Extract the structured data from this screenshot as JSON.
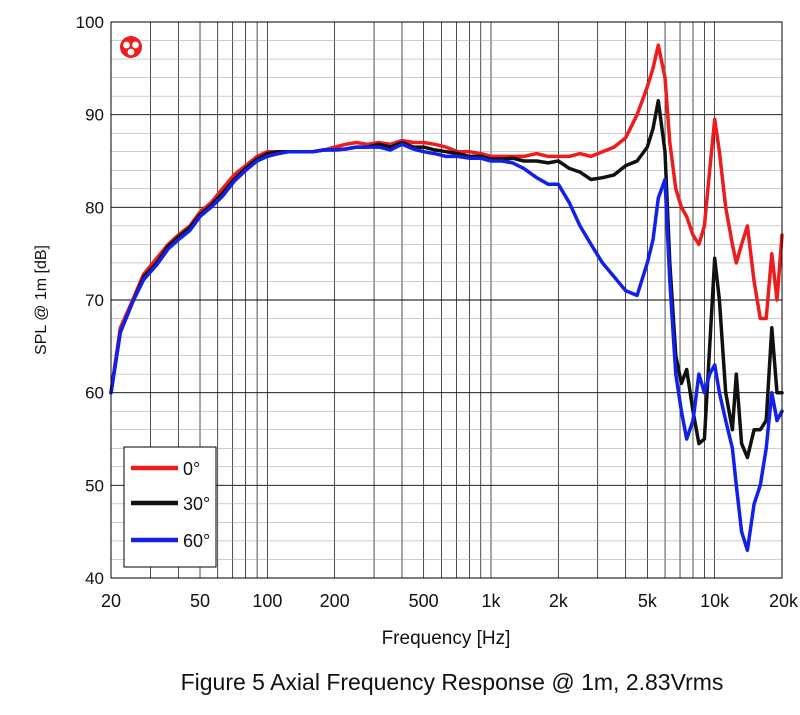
{
  "chart_data": {
    "type": "line",
    "title": "",
    "caption": "Figure 5 Axial Frequency Response @ 1m, 2.83Vrms",
    "xlabel": "Frequency [Hz]",
    "ylabel": "SPL @ 1m [dB]",
    "xscale": "log",
    "xlim": [
      20,
      20000
    ],
    "ylim": [
      40,
      100
    ],
    "grid": true,
    "legend_position": "bottom-left",
    "x_ticks": [
      {
        "value": 20,
        "label": "20"
      },
      {
        "value": 50,
        "label": "50"
      },
      {
        "value": 100,
        "label": "100"
      },
      {
        "value": 200,
        "label": "200"
      },
      {
        "value": 500,
        "label": "500"
      },
      {
        "value": 1000,
        "label": "1k"
      },
      {
        "value": 2000,
        "label": "2k"
      },
      {
        "value": 5000,
        "label": "5k"
      },
      {
        "value": 10000,
        "label": "10k"
      },
      {
        "value": 20000,
        "label": "20k"
      }
    ],
    "y_ticks": [
      40,
      50,
      60,
      70,
      80,
      90,
      100
    ],
    "series": [
      {
        "name": "0°",
        "color": "#ee1c1c",
        "x": [
          20,
          22,
          25,
          28,
          32,
          36,
          40,
          45,
          50,
          56,
          63,
          71,
          80,
          90,
          100,
          112,
          125,
          140,
          160,
          180,
          200,
          224,
          250,
          280,
          315,
          355,
          400,
          450,
          500,
          560,
          630,
          710,
          800,
          900,
          1000,
          1120,
          1250,
          1400,
          1600,
          1800,
          2000,
          2240,
          2500,
          2800,
          3150,
          3550,
          4000,
          4500,
          5000,
          5300,
          5600,
          6000,
          6300,
          6700,
          7100,
          7500,
          8000,
          8500,
          9000,
          9500,
          10000,
          10500,
          11200,
          12000,
          12500,
          13200,
          14000,
          15000,
          16000,
          17000,
          18000,
          19000,
          20000
        ],
        "values": [
          60,
          67,
          70,
          72.8,
          74.5,
          76,
          77,
          78,
          79.5,
          80.5,
          82,
          83.5,
          84.5,
          85.5,
          86,
          86,
          86,
          86,
          86,
          86.2,
          86.5,
          86.8,
          87,
          86.8,
          87,
          86.8,
          87.2,
          87,
          87,
          86.8,
          86.5,
          86,
          86,
          85.8,
          85.5,
          85.5,
          85.5,
          85.5,
          85.8,
          85.5,
          85.5,
          85.5,
          85.8,
          85.5,
          86,
          86.5,
          87.5,
          90,
          93,
          95,
          97.5,
          94,
          87,
          82,
          80,
          79,
          77,
          76,
          78,
          84,
          89.5,
          86,
          80,
          76,
          74,
          76,
          78,
          72,
          68,
          68,
          75,
          70,
          77
        ]
      },
      {
        "name": "30°",
        "color": "#111111",
        "x": [
          20,
          22,
          25,
          28,
          32,
          36,
          40,
          45,
          50,
          56,
          63,
          71,
          80,
          90,
          100,
          112,
          125,
          140,
          160,
          180,
          200,
          224,
          250,
          280,
          315,
          355,
          400,
          450,
          500,
          560,
          630,
          710,
          800,
          900,
          1000,
          1120,
          1250,
          1400,
          1600,
          1800,
          2000,
          2240,
          2500,
          2800,
          3150,
          3550,
          4000,
          4500,
          5000,
          5300,
          5600,
          6000,
          6300,
          6700,
          7100,
          7500,
          8000,
          8500,
          9000,
          9500,
          10000,
          10500,
          11200,
          12000,
          12500,
          13200,
          14000,
          15000,
          16000,
          17000,
          18000,
          19000,
          20000
        ],
        "values": [
          60,
          66.5,
          69.8,
          72.5,
          74,
          75.8,
          76.8,
          77.8,
          79.2,
          80.2,
          81.5,
          83,
          84.2,
          85.2,
          85.8,
          86,
          86,
          86,
          86,
          86.2,
          86.2,
          86.3,
          86.5,
          86.5,
          86.8,
          86.5,
          87,
          86.5,
          86.5,
          86.2,
          86,
          85.8,
          85.5,
          85.5,
          85.2,
          85.2,
          85.3,
          85,
          85,
          84.8,
          85,
          84.2,
          83.8,
          83,
          83.2,
          83.5,
          84.5,
          85,
          86.5,
          88.5,
          91.5,
          86,
          74,
          64,
          61,
          62.5,
          58,
          54.5,
          55,
          65,
          74.5,
          70,
          60,
          56,
          62,
          54.5,
          53,
          56,
          56,
          57,
          67,
          60,
          60
        ]
      },
      {
        "name": "60°",
        "color": "#1320e8",
        "x": [
          20,
          22,
          25,
          28,
          32,
          36,
          40,
          45,
          50,
          56,
          63,
          71,
          80,
          90,
          100,
          112,
          125,
          140,
          160,
          180,
          200,
          224,
          250,
          280,
          315,
          355,
          400,
          450,
          500,
          560,
          630,
          710,
          800,
          900,
          1000,
          1120,
          1250,
          1400,
          1600,
          1800,
          2000,
          2240,
          2500,
          2800,
          3150,
          3550,
          4000,
          4500,
          5000,
          5300,
          5600,
          6000,
          6300,
          6700,
          7100,
          7500,
          8000,
          8500,
          9000,
          9500,
          10000,
          10500,
          11200,
          12000,
          12500,
          13200,
          14000,
          15000,
          16000,
          17000,
          18000,
          19000,
          20000
        ],
        "values": [
          60,
          66.5,
          69.8,
          72.2,
          73.8,
          75.5,
          76.5,
          77.5,
          79,
          80,
          81.2,
          82.8,
          84,
          85,
          85.5,
          85.8,
          86,
          86,
          86,
          86.2,
          86.2,
          86.3,
          86.5,
          86.5,
          86.5,
          86.2,
          86.8,
          86.3,
          86,
          85.8,
          85.5,
          85.5,
          85.3,
          85.3,
          85,
          85,
          84.8,
          84.2,
          83.2,
          82.5,
          82.5,
          80.5,
          78,
          76,
          74,
          72.5,
          71,
          70.5,
          74,
          76.5,
          81,
          83,
          72,
          62,
          58,
          55,
          57,
          62,
          60,
          62,
          63,
          60,
          57,
          54,
          50,
          45,
          43,
          48,
          50,
          54,
          60,
          57,
          58
        ]
      }
    ]
  }
}
